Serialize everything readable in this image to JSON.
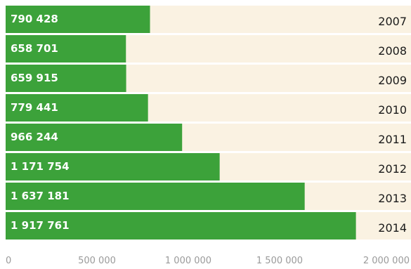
{
  "colors": {
    "bar": "#3ca23a",
    "track": "#faf2e2",
    "gap": "#ffffff",
    "value_text": "#ffffff",
    "year_text": "#1a1a1a",
    "tick_text": "#9a9a9a"
  },
  "chart_data": {
    "type": "bar",
    "orientation": "horizontal",
    "categories": [
      "2007",
      "2008",
      "2009",
      "2010",
      "2011",
      "2012",
      "2013",
      "2014"
    ],
    "values": [
      790428,
      658701,
      659915,
      779441,
      966244,
      1171754,
      1637181,
      1917761
    ],
    "value_labels": [
      "790 428",
      "658 701",
      "659 915",
      "779 441",
      "966 244",
      "1 171 754",
      "1 637 181",
      "1 917 761"
    ],
    "xlim": [
      0,
      2000000
    ],
    "x_ticks": [
      0,
      500000,
      1000000,
      1500000,
      2000000
    ],
    "x_tick_labels": [
      "0",
      "500 000",
      "1 000 000",
      "1 500 000",
      "2 000 000"
    ],
    "title": "",
    "xlabel": "",
    "ylabel": "",
    "grid": false,
    "legend": "none"
  }
}
